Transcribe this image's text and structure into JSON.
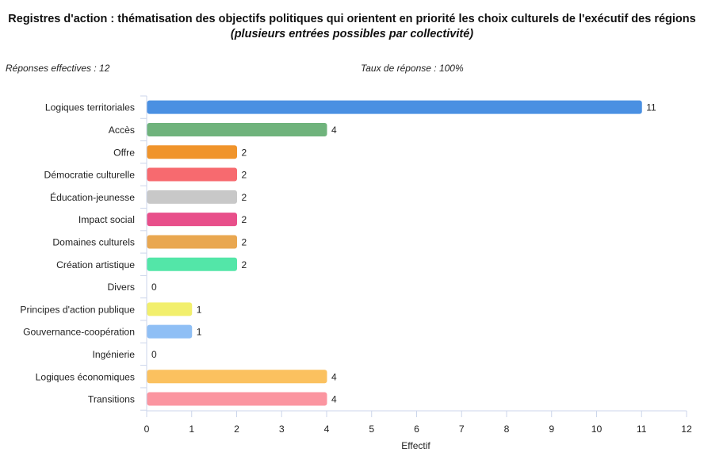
{
  "header": {
    "title_main": "Registres d'action : thématisation des objectifs politiques qui orientent en priorité les choix culturels de l'exécutif des régions",
    "title_sub": "(plusieurs entrées possibles par collectivité)"
  },
  "meta": {
    "responses": "Réponses effectives : 12",
    "rate": "Taux de réponse : 100%"
  },
  "chart_data": {
    "type": "bar",
    "orientation": "horizontal",
    "title": "Registres d'action : thématisation des objectifs politiques qui orientent en priorité les choix culturels de l'exécutif des régions (plusieurs entrées possibles par collectivité)",
    "xlabel": "Effectif",
    "ylabel": "",
    "xlim": [
      0,
      12
    ],
    "xticks": [
      0,
      1,
      2,
      3,
      4,
      5,
      6,
      7,
      8,
      9,
      10,
      11,
      12
    ],
    "categories": [
      "Logiques territoriales",
      "Accès",
      "Offre",
      "Démocratie culturelle",
      "Éducation-jeunesse",
      "Impact social",
      "Domaines culturels",
      "Création artistique",
      "Divers",
      "Principes d'action publique",
      "Gouvernance-coopération",
      "Ingénierie",
      "Logiques économiques",
      "Transitions"
    ],
    "values": [
      11,
      4,
      2,
      2,
      2,
      2,
      2,
      2,
      0,
      1,
      1,
      0,
      4,
      4
    ],
    "colors": [
      "#4a90e2",
      "#6fb37c",
      "#f0942b",
      "#f76a6f",
      "#c8c8c8",
      "#e84f8a",
      "#e9a750",
      "#53e6a8",
      "#cccccc",
      "#f2ef6c",
      "#8fbff5",
      "#cccccc",
      "#fbc15f",
      "#fb95a0"
    ],
    "grid": false,
    "legend": "none"
  }
}
